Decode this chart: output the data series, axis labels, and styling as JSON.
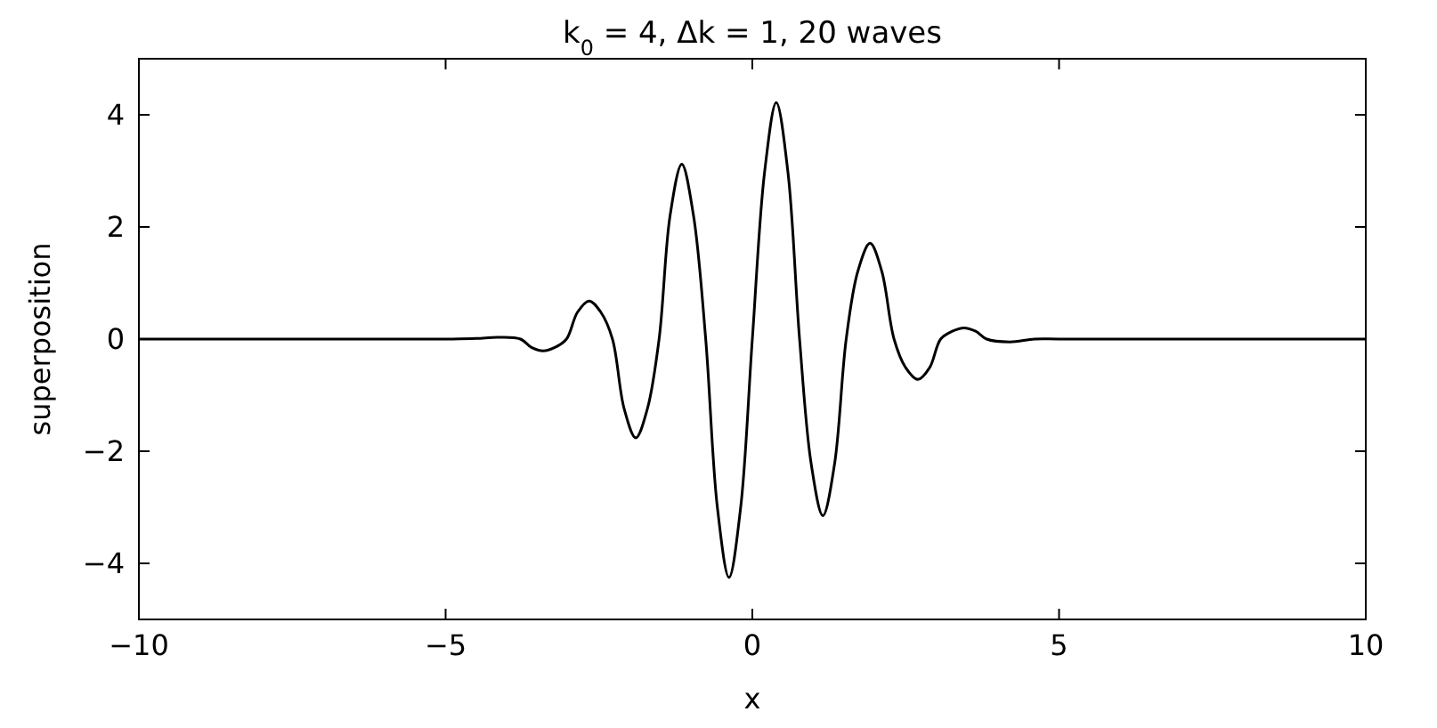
{
  "chart_data": {
    "type": "line",
    "title": "k$_{0}$ = 4, Δk = 1, 20 waves",
    "xlabel": "x",
    "ylabel": "superposition",
    "xlim": [
      -10,
      10
    ],
    "ylim": [
      -5,
      5
    ],
    "xticks": [
      -10,
      -5,
      0,
      5,
      10
    ],
    "yticks": [
      -4,
      -2,
      0,
      2,
      4
    ],
    "x": [
      -10,
      -7.5,
      -5,
      -4.5,
      -4.15,
      -3.78,
      -3.6,
      -3.41,
      -3.22,
      -3.03,
      -2.85,
      -2.66,
      -2.47,
      -2.28,
      -2.09,
      -1.9,
      -1.71,
      -1.52,
      -1.34,
      -1.15,
      -0.96,
      -0.76,
      -0.57,
      -0.38,
      -0.19,
      0,
      0.2,
      0.39,
      0.58,
      0.77,
      0.96,
      1.15,
      1.34,
      1.53,
      1.72,
      1.92,
      2.11,
      2.31,
      2.5,
      2.7,
      2.89,
      3.07,
      3.26,
      3.45,
      3.64,
      3.82,
      4.2,
      4.6,
      5,
      7.5,
      10
    ],
    "series": [
      {
        "color": "#000000",
        "values": [
          0,
          0,
          0,
          0.01,
          0.03,
          0,
          -0.15,
          -0.21,
          -0.15,
          0,
          0.48,
          0.68,
          0.48,
          0,
          -1.24,
          -1.76,
          -1.24,
          0,
          2.21,
          3.12,
          2.21,
          0,
          -3.0,
          -4.25,
          -3.0,
          0,
          2.98,
          4.22,
          2.98,
          0,
          -2.23,
          -3.15,
          -2.23,
          0,
          1.21,
          1.71,
          1.21,
          0,
          -0.51,
          -0.72,
          -0.51,
          0,
          0.14,
          0.2,
          0.14,
          0,
          -0.05,
          0,
          0,
          0,
          0
        ]
      }
    ]
  }
}
